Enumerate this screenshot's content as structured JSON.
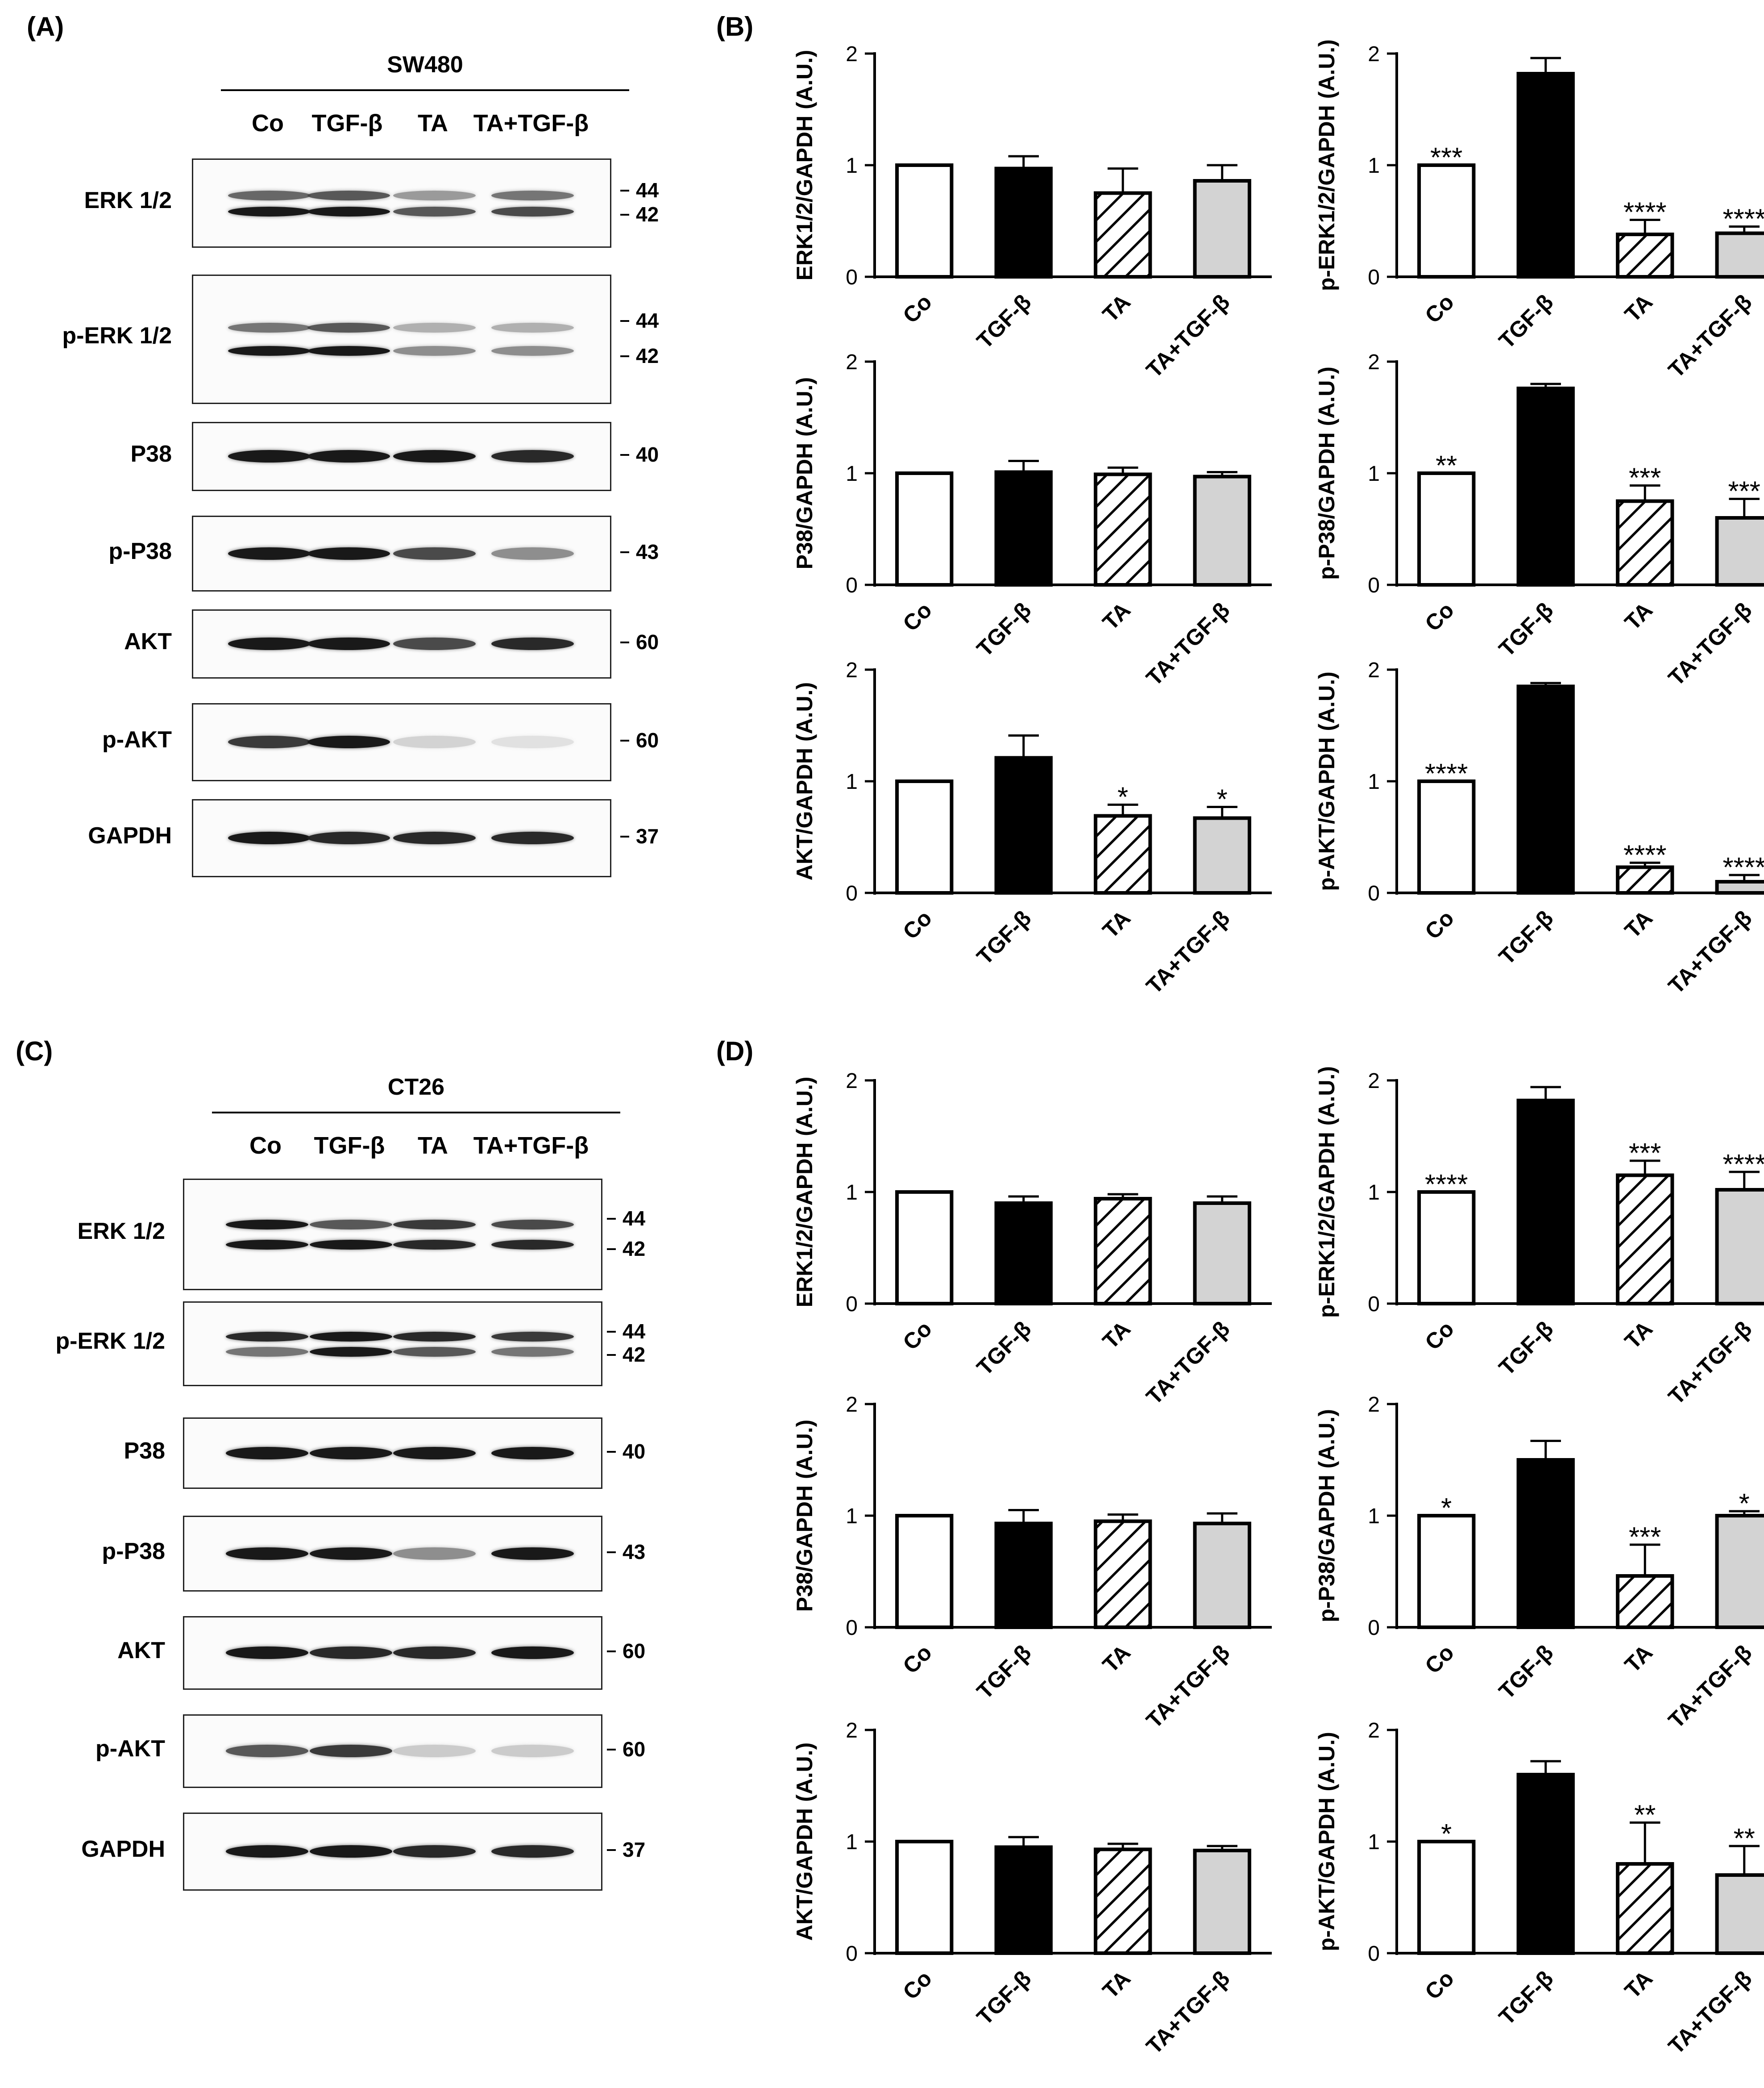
{
  "panels": {
    "A": {
      "letter": "(A)",
      "cell_line": "SW480",
      "lanes": [
        "Co",
        "TGF-β",
        "TA",
        "TA+TGF-β"
      ],
      "blots": [
        {
          "label": "ERK 1/2",
          "mw": [
            "44",
            "42"
          ]
        },
        {
          "label": "p-ERK 1/2",
          "mw": [
            "44",
            "42"
          ]
        },
        {
          "label": "P38",
          "mw": [
            "40"
          ]
        },
        {
          "label": "p-P38",
          "mw": [
            "43"
          ]
        },
        {
          "label": "AKT",
          "mw": [
            "60"
          ]
        },
        {
          "label": "p-AKT",
          "mw": [
            "60"
          ]
        },
        {
          "label": "GAPDH",
          "mw": [
            "37"
          ]
        }
      ]
    },
    "B": {
      "letter": "(B)"
    },
    "C": {
      "letter": "(C)",
      "cell_line": "CT26",
      "lanes": [
        "Co",
        "TGF-β",
        "TA",
        "TA+TGF-β"
      ],
      "blots": [
        {
          "label": "ERK 1/2",
          "mw": [
            "44",
            "42"
          ]
        },
        {
          "label": "p-ERK 1/2",
          "mw": [
            "44",
            "42"
          ]
        },
        {
          "label": "P38",
          "mw": [
            "40"
          ]
        },
        {
          "label": "p-P38",
          "mw": [
            "43"
          ]
        },
        {
          "label": "AKT",
          "mw": [
            "60"
          ]
        },
        {
          "label": "p-AKT",
          "mw": [
            "60"
          ]
        },
        {
          "label": "GAPDH",
          "mw": [
            "37"
          ]
        }
      ]
    },
    "D": {
      "letter": "(D)"
    }
  },
  "colors": {
    "open": "#ffffff",
    "black": "#000000",
    "grey": "#d3d3d3",
    "stroke": "#000000"
  },
  "chart_data": [
    {
      "id": "B1",
      "panel": "B",
      "type": "bar",
      "ylabel": "ERK1/2/GAPDH (A.U.)",
      "categories": [
        "Co",
        "TGF-β",
        "TA",
        "TA+TGF-β"
      ],
      "values": [
        1.0,
        0.97,
        0.75,
        0.86
      ],
      "errors": [
        0,
        0.11,
        0.22,
        0.14
      ],
      "significance": [
        "",
        "",
        "",
        ""
      ],
      "ylim": [
        0,
        2
      ],
      "yticks": [
        "0",
        "1",
        "2"
      ],
      "bar_styles": [
        "open",
        "black",
        "hatched",
        "grey"
      ]
    },
    {
      "id": "B2",
      "panel": "B",
      "type": "bar",
      "ylabel": "p-ERK1/2/GAPDH (A.U.)",
      "categories": [
        "Co",
        "TGF-β",
        "TA",
        "TA+TGF-β"
      ],
      "values": [
        1.0,
        1.82,
        0.38,
        0.39
      ],
      "errors": [
        0,
        0.14,
        0.13,
        0.06
      ],
      "significance": [
        "***",
        "",
        "****",
        "****"
      ],
      "ylim": [
        0,
        2
      ],
      "yticks": [
        "0",
        "1",
        "2"
      ],
      "bar_styles": [
        "open",
        "black",
        "hatched",
        "grey"
      ]
    },
    {
      "id": "B3",
      "panel": "B",
      "type": "bar",
      "ylabel": "P38/GAPDH (A.U.)",
      "categories": [
        "Co",
        "TGF-β",
        "TA",
        "TA+TGF-β"
      ],
      "values": [
        1.0,
        1.01,
        0.99,
        0.97
      ],
      "errors": [
        0,
        0.1,
        0.06,
        0.04
      ],
      "significance": [
        "",
        "",
        "",
        ""
      ],
      "ylim": [
        0,
        2
      ],
      "yticks": [
        "0",
        "1",
        "2"
      ],
      "bar_styles": [
        "open",
        "black",
        "hatched",
        "grey"
      ]
    },
    {
      "id": "B4",
      "panel": "B",
      "type": "bar",
      "ylabel": "p-P38/GAPDH (A.U.)",
      "categories": [
        "Co",
        "TGF-β",
        "TA",
        "TA+TGF-β"
      ],
      "values": [
        1.0,
        1.76,
        0.75,
        0.6
      ],
      "errors": [
        0,
        0.04,
        0.14,
        0.17
      ],
      "significance": [
        "**",
        "",
        "***",
        "***"
      ],
      "ylim": [
        0,
        2
      ],
      "yticks": [
        "0",
        "1",
        "2"
      ],
      "bar_styles": [
        "open",
        "black",
        "hatched",
        "grey"
      ]
    },
    {
      "id": "B5",
      "panel": "B",
      "type": "bar",
      "ylabel": "AKT/GAPDH (A.U.)",
      "categories": [
        "Co",
        "TGF-β",
        "TA",
        "TA+TGF-β"
      ],
      "values": [
        1.0,
        1.21,
        0.69,
        0.67
      ],
      "errors": [
        0,
        0.2,
        0.1,
        0.1
      ],
      "significance": [
        "",
        "",
        "*",
        "*"
      ],
      "ylim": [
        0,
        2
      ],
      "yticks": [
        "0",
        "1",
        "2"
      ],
      "bar_styles": [
        "open",
        "black",
        "hatched",
        "grey"
      ]
    },
    {
      "id": "B6",
      "panel": "B",
      "type": "bar",
      "ylabel": "p-AKT/GAPDH (A.U.)",
      "categories": [
        "Co",
        "TGF-β",
        "TA",
        "TA+TGF-β"
      ],
      "values": [
        1.0,
        1.85,
        0.23,
        0.1
      ],
      "errors": [
        0,
        0.03,
        0.04,
        0.06
      ],
      "significance": [
        "****",
        "",
        "****",
        "****"
      ],
      "ylim": [
        0,
        2
      ],
      "yticks": [
        "0",
        "1",
        "2"
      ],
      "bar_styles": [
        "open",
        "black",
        "hatched",
        "grey"
      ]
    },
    {
      "id": "D1",
      "panel": "D",
      "type": "bar",
      "ylabel": "ERK1/2/GAPDH (A.U.)",
      "categories": [
        "Co",
        "TGF-β",
        "TA",
        "TA+TGF-β"
      ],
      "values": [
        1.0,
        0.9,
        0.94,
        0.9
      ],
      "errors": [
        0,
        0.06,
        0.04,
        0.06
      ],
      "significance": [
        "",
        "",
        "",
        ""
      ],
      "ylim": [
        0,
        2
      ],
      "yticks": [
        "0",
        "1",
        "2"
      ],
      "bar_styles": [
        "open",
        "black",
        "hatched",
        "grey"
      ]
    },
    {
      "id": "D2",
      "panel": "D",
      "type": "bar",
      "ylabel": "p-ERK1/2/GAPDH (A.U.)",
      "categories": [
        "Co",
        "TGF-β",
        "TA",
        "TA+TGF-β"
      ],
      "values": [
        1.0,
        1.82,
        1.15,
        1.02
      ],
      "errors": [
        0,
        0.12,
        0.13,
        0.16
      ],
      "significance": [
        "****",
        "",
        "***",
        "****"
      ],
      "ylim": [
        0,
        2
      ],
      "yticks": [
        "0",
        "1",
        "2"
      ],
      "bar_styles": [
        "open",
        "black",
        "hatched",
        "grey"
      ]
    },
    {
      "id": "D3",
      "panel": "D",
      "type": "bar",
      "ylabel": "P38/GAPDH (A.U.)",
      "categories": [
        "Co",
        "TGF-β",
        "TA",
        "TA+TGF-β"
      ],
      "values": [
        1.0,
        0.93,
        0.95,
        0.93
      ],
      "errors": [
        0,
        0.12,
        0.06,
        0.09
      ],
      "significance": [
        "",
        "",
        "",
        ""
      ],
      "ylim": [
        0,
        2
      ],
      "yticks": [
        "0",
        "1",
        "2"
      ],
      "bar_styles": [
        "open",
        "black",
        "hatched",
        "grey"
      ]
    },
    {
      "id": "D4",
      "panel": "D",
      "type": "bar",
      "ylabel": "p-P38/GAPDH (A.U.)",
      "categories": [
        "Co",
        "TGF-β",
        "TA",
        "TA+TGF-β"
      ],
      "values": [
        1.0,
        1.5,
        0.46,
        1.0
      ],
      "errors": [
        0,
        0.17,
        0.28,
        0.04
      ],
      "significance": [
        "*",
        "",
        "***",
        "*"
      ],
      "ylim": [
        0,
        2
      ],
      "yticks": [
        "0",
        "1",
        "2"
      ],
      "bar_styles": [
        "open",
        "black",
        "hatched",
        "grey"
      ]
    },
    {
      "id": "D5",
      "panel": "D",
      "type": "bar",
      "ylabel": "AKT/GAPDH (A.U.)",
      "categories": [
        "Co",
        "TGF-β",
        "TA",
        "TA+TGF-β"
      ],
      "values": [
        1.0,
        0.95,
        0.93,
        0.92
      ],
      "errors": [
        0,
        0.09,
        0.05,
        0.04
      ],
      "significance": [
        "",
        "",
        "",
        ""
      ],
      "ylim": [
        0,
        2
      ],
      "yticks": [
        "0",
        "1",
        "2"
      ],
      "bar_styles": [
        "open",
        "black",
        "hatched",
        "grey"
      ]
    },
    {
      "id": "D6",
      "panel": "D",
      "type": "bar",
      "ylabel": "p-AKT/GAPDH (A.U.)",
      "categories": [
        "Co",
        "TGF-β",
        "TA",
        "TA+TGF-β"
      ],
      "values": [
        1.0,
        1.6,
        0.8,
        0.7
      ],
      "errors": [
        0,
        0.12,
        0.37,
        0.26
      ],
      "significance": [
        "*",
        "",
        "**",
        "**"
      ],
      "ylim": [
        0,
        2
      ],
      "yticks": [
        "0",
        "1",
        "2"
      ],
      "bar_styles": [
        "open",
        "black",
        "hatched",
        "grey"
      ]
    }
  ]
}
